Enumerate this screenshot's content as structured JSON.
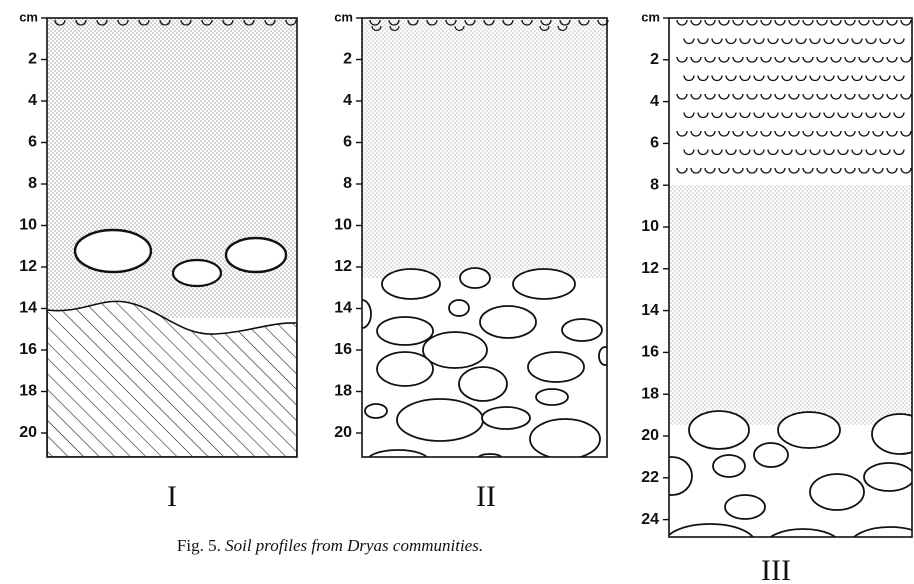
{
  "figure": {
    "caption_number": "Fig. 5.",
    "caption_text": "Soil profiles from Dryas communities.",
    "profiles": [
      {
        "label": "I",
        "unit": "cm",
        "depth_ticks": [
          2,
          4,
          6,
          8,
          10,
          12,
          14,
          16,
          18,
          20
        ]
      },
      {
        "label": "II",
        "unit": "cm",
        "depth_ticks": [
          2,
          4,
          6,
          8,
          10,
          12,
          14,
          16,
          18,
          20
        ]
      },
      {
        "label": "III",
        "unit": "cm",
        "depth_ticks": [
          2,
          4,
          6,
          8,
          10,
          12,
          14,
          16,
          18,
          20,
          22,
          24
        ]
      }
    ]
  }
}
